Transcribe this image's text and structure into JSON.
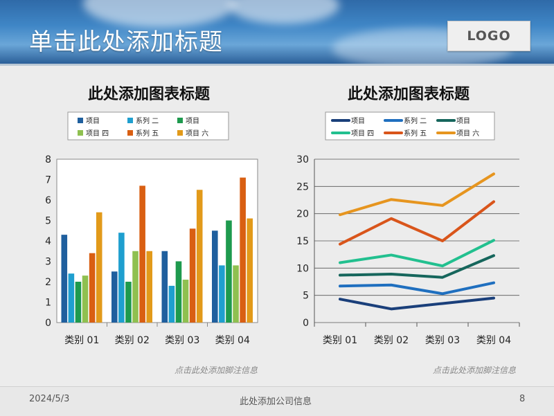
{
  "slide": {
    "title": "单击此处添加标题",
    "logo": "LOGO",
    "footer_date": "2024/5/3",
    "footer_company": "此处添加公司信息",
    "page_number": "8"
  },
  "colors": [
    "#1f5f9e",
    "#1f9fcf",
    "#1e9a4e",
    "#8fc050",
    "#d95f12",
    "#e29a1a"
  ],
  "line_colors": [
    "#1a3f7a",
    "#1f6fbf",
    "#16665c",
    "#22c08f",
    "#d9551b",
    "#e6951f"
  ],
  "chart_data": [
    {
      "type": "bar",
      "title": "此处添加图表标题",
      "categories": [
        "类别 01",
        "类别 02",
        "类别 03",
        "类别 04"
      ],
      "series": [
        {
          "name": "项目",
          "values": [
            4.3,
            2.5,
            3.5,
            4.5
          ]
        },
        {
          "name": "系列 二",
          "values": [
            2.4,
            4.4,
            1.8,
            2.8
          ]
        },
        {
          "name": "项目",
          "values": [
            2.0,
            2.0,
            3.0,
            5.0
          ]
        },
        {
          "name": "项目 四",
          "values": [
            2.3,
            3.5,
            2.1,
            2.8
          ]
        },
        {
          "name": "系列 五",
          "values": [
            3.4,
            6.7,
            4.6,
            7.1
          ]
        },
        {
          "name": "项目 六",
          "values": [
            5.4,
            3.5,
            6.5,
            5.1
          ]
        }
      ],
      "yticks": [
        "0",
        "1",
        "2",
        "3",
        "4",
        "5",
        "6",
        "7",
        "8"
      ],
      "ylim": [
        0,
        8
      ],
      "footnote": "点击此处添加脚注信息"
    },
    {
      "type": "line",
      "title": "此处添加图表标题",
      "categories": [
        "类别 01",
        "类别 02",
        "类别 03",
        "类别 04"
      ],
      "series": [
        {
          "name": "项目",
          "values": [
            4.3,
            2.5,
            3.5,
            4.5
          ]
        },
        {
          "name": "系列 二",
          "values": [
            6.7,
            6.9,
            5.3,
            7.3
          ]
        },
        {
          "name": "项目",
          "values": [
            8.7,
            8.9,
            8.3,
            12.3
          ]
        },
        {
          "name": "项目 四",
          "values": [
            11.0,
            12.4,
            10.4,
            15.1
          ]
        },
        {
          "name": "系列 五",
          "values": [
            14.4,
            19.1,
            15.0,
            22.2
          ]
        },
        {
          "name": "项目 六",
          "values": [
            19.8,
            22.6,
            21.5,
            27.3
          ]
        }
      ],
      "yticks": [
        "0",
        "5",
        "10",
        "15",
        "20",
        "25",
        "30"
      ],
      "ylim": [
        0,
        30
      ],
      "footnote": "点击此处添加脚注信息"
    }
  ]
}
